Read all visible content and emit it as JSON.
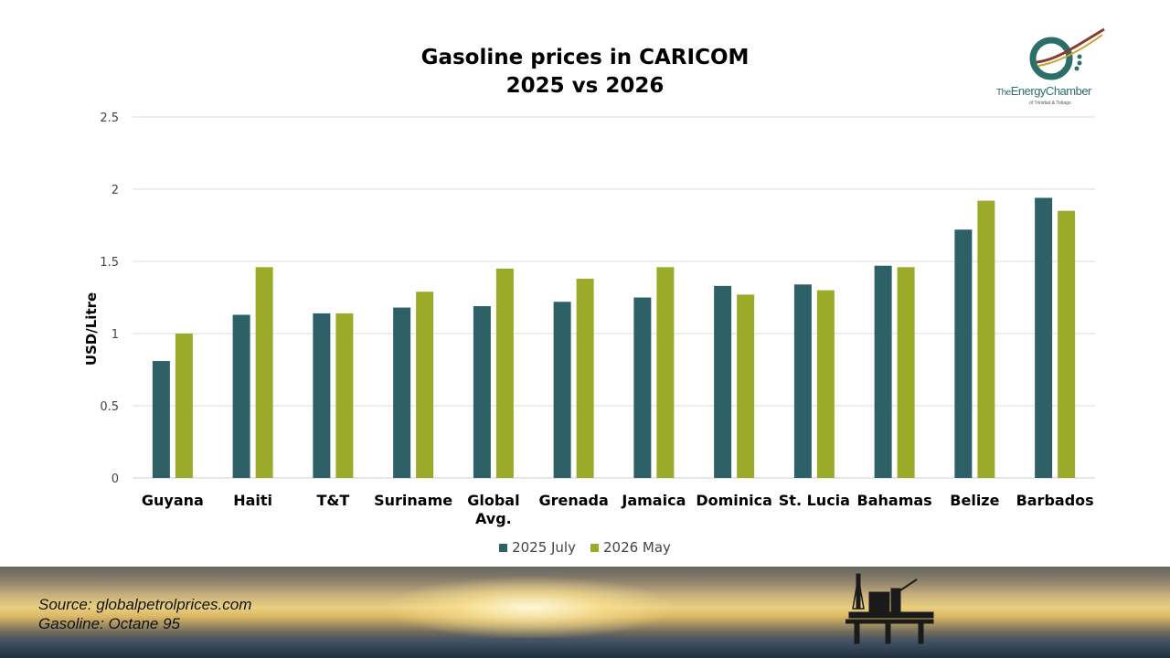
{
  "chart_data": {
    "type": "bar",
    "title": [
      "Gasoline prices in CARICOM",
      "2025 vs 2026"
    ],
    "ylabel": "USD/Litre",
    "xlabel": "",
    "ylim": [
      0,
      2.5
    ],
    "yticks": [
      0,
      0.5,
      1,
      1.5,
      2,
      2.5
    ],
    "ytick_labels": [
      "0",
      "0.5",
      "1",
      "1.5",
      "2",
      "2.5"
    ],
    "grid": true,
    "legend_position": "bottom",
    "categories": [
      "Guyana",
      "Haiti",
      "T&T",
      "Suriname",
      "Global Avg.",
      "Grenada",
      "Jamaica",
      "Dominica",
      "St. Lucia",
      "Bahamas",
      "Belize",
      "Barbados"
    ],
    "series": [
      {
        "name": "2025 July",
        "color": "#2e6068",
        "values": [
          0.81,
          1.13,
          1.14,
          1.18,
          1.19,
          1.22,
          1.25,
          1.33,
          1.34,
          1.47,
          1.72,
          1.94
        ]
      },
      {
        "name": "2026 May",
        "color": "#9bab29",
        "values": [
          1.0,
          1.46,
          1.14,
          1.29,
          1.45,
          1.38,
          1.46,
          1.27,
          1.3,
          1.46,
          1.92,
          1.85
        ]
      }
    ]
  },
  "logo": {
    "prefix": "The",
    "name": "EnergyChamber",
    "sub": "of Trinidad & Tobago"
  },
  "footer": {
    "source": "Source: globalpetrolprices.com",
    "note": "Gasoline: Octane 95"
  }
}
